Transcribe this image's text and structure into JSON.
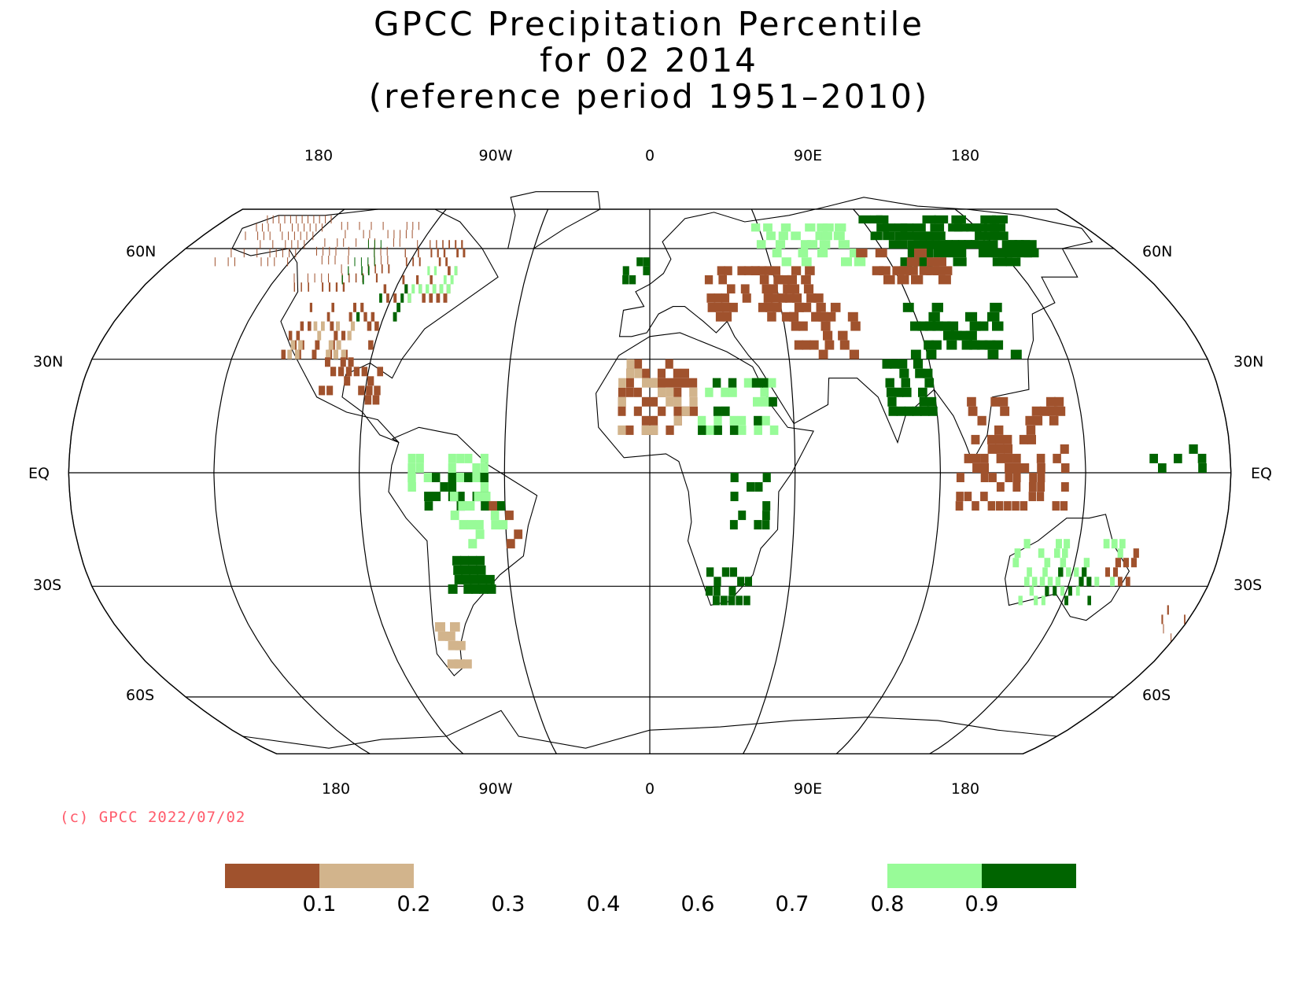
{
  "title": {
    "line1": "GPCC Precipitation Percentile",
    "line2": "for 02 2014",
    "line3": "(reference period 1951–2010)"
  },
  "axes": {
    "top_longitudes": [
      "180",
      "90W",
      "0",
      "90E",
      "180"
    ],
    "bottom_longitudes": [
      "180",
      "90W",
      "0",
      "90E",
      "180"
    ],
    "left_latitudes": [
      "60N",
      "30N",
      "EQ",
      "30S",
      "60S"
    ],
    "right_latitudes": [
      "60N",
      "30N",
      "EQ",
      "30S",
      "60S"
    ]
  },
  "copyright": "(c) GPCC 2022/07/02",
  "legend": {
    "tick_labels": [
      "0.1",
      "0.2",
      "0.3",
      "0.4",
      "0.6",
      "0.7",
      "0.8",
      "0.9"
    ],
    "classes": [
      {
        "range": "<0.1",
        "color": "#a0522d"
      },
      {
        "range": "0.1-0.2",
        "color": "#d2b48c"
      },
      {
        "range": "0.2-0.8",
        "color": "#ffffff"
      },
      {
        "range": "0.8-0.9",
        "color": "#98fb98"
      },
      {
        "range": ">0.9",
        "color": "#006400"
      }
    ]
  },
  "colors": {
    "very_dry": "#a0522d",
    "dry": "#d2b48c",
    "wet": "#98fb98",
    "very_wet": "#006400",
    "copyright_text": "#ff5b6b"
  }
}
